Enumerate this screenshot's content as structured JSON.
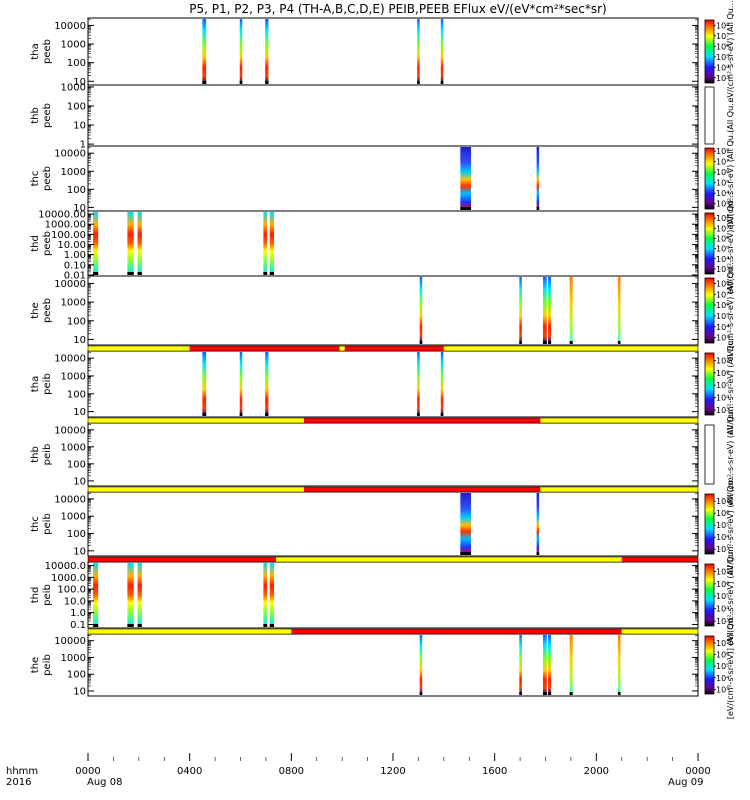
{
  "chart_data": {
    "type": "heatmap",
    "title": "P5, P1, P2, P3, P4 (TH-A,B,C,D,E) PEIB,PEEB EFlux eV/(eV*cm²*sec*sr)",
    "x_axis": {
      "range_hours": [
        0,
        24
      ],
      "tick_values": [
        0,
        4,
        8,
        12,
        16,
        20,
        24
      ],
      "tick_labels": [
        "0000",
        "0400",
        "0800",
        "1200",
        "1600",
        "2000",
        "0000"
      ],
      "date_labels": [
        "Aug 08",
        "Aug 09"
      ],
      "corner_labels": [
        "hhmm",
        "2016"
      ]
    },
    "colormap": "rainbow (black-purple-blue-cyan-green-yellow-red)",
    "panels": [
      {
        "id": "tha-peeb",
        "ylabel": [
          "tha",
          "peeb"
        ],
        "yticks": [
          "10000",
          "1000",
          "100",
          "10"
        ],
        "ylog": [
          0.8,
          4.4
        ],
        "cbar_label": "eV/(cm²-s-sr-eV) (All Qu...",
        "cbar_ticks": [
          "10⁸",
          "10⁷",
          "10⁶",
          "10⁵",
          "10⁴",
          "10³"
        ],
        "cbar_range": [
          2.5,
          8.5
        ],
        "strips": [
          {
            "from": 4.5,
            "to": 4.65,
            "style": "e"
          },
          {
            "from": 5.97,
            "to": 6.07,
            "style": "e"
          },
          {
            "from": 6.97,
            "to": 7.1,
            "style": "e"
          },
          {
            "from": 12.95,
            "to": 13.05,
            "style": "e"
          },
          {
            "from": 13.88,
            "to": 13.98,
            "style": "e"
          }
        ]
      },
      {
        "id": "thb-peeb",
        "ylabel": [
          "thb",
          "peeb"
        ],
        "yticks": [
          "1000",
          "100",
          "10",
          "1"
        ],
        "ylog": [
          -0.1,
          3.1
        ],
        "cbar_label": "(All Qu...",
        "cbar_ticks": [],
        "cbar_range": [
          0,
          1
        ],
        "strips": []
      },
      {
        "id": "thc-peeb",
        "ylabel": [
          "thc",
          "peeb"
        ],
        "yticks": [
          "10000",
          "1000",
          "100",
          "10"
        ],
        "ylog": [
          0.8,
          4.4
        ],
        "cbar_label": "eV/(cm²-s-sr-eV) (All Qu...",
        "cbar_ticks": [
          "10⁸",
          "10⁷",
          "10⁶",
          "10⁵",
          "10⁴",
          "10³"
        ],
        "cbar_range": [
          2.5,
          8.3
        ],
        "strips": [
          {
            "from": 14.65,
            "to": 15.07,
            "style": "c"
          },
          {
            "from": 17.65,
            "to": 17.75,
            "style": "c"
          }
        ]
      },
      {
        "id": "thd-peeb",
        "ylabel": [
          "thd",
          "peeb"
        ],
        "yticks": [
          "10000.00",
          "1000.00",
          "100.00",
          "10.00",
          "1.00",
          "0.10",
          "0.01"
        ],
        "ylog": [
          -2.1,
          4.3
        ],
        "cbar_label": "eV/(cm²-s-sr-eV) (All Qu...",
        "cbar_ticks": [
          "10⁸",
          "10⁷",
          "10⁶",
          "10⁵",
          "10⁴",
          "10³"
        ],
        "cbar_range": [
          2.5,
          8.5
        ],
        "strips": [
          {
            "from": 0.2,
            "to": 0.4,
            "style": "d"
          },
          {
            "from": 1.55,
            "to": 1.8,
            "style": "d"
          },
          {
            "from": 1.95,
            "to": 2.12,
            "style": "d"
          },
          {
            "from": 6.9,
            "to": 7.05,
            "style": "d"
          },
          {
            "from": 7.15,
            "to": 7.32,
            "style": "d"
          }
        ]
      },
      {
        "id": "the-peeb",
        "ylabel": [
          "the",
          "peeb"
        ],
        "yticks": [
          "10000",
          "1000",
          "100",
          "10"
        ],
        "ylog": [
          0.7,
          4.4
        ],
        "cbar_label": "eV/(cm²-s-sr-eV) (All Qu...",
        "cbar_ticks": [
          "10⁸",
          "10⁷",
          "10⁶",
          "10⁵",
          "10⁴",
          "10³"
        ],
        "cbar_range": [
          2.5,
          8.5
        ],
        "strips": [
          {
            "from": 13.05,
            "to": 13.15,
            "style": "e"
          },
          {
            "from": 16.97,
            "to": 17.07,
            "style": "e"
          },
          {
            "from": 17.9,
            "to": 18.05,
            "style": "e"
          },
          {
            "from": 18.1,
            "to": 18.22,
            "style": "e"
          },
          {
            "from": 18.95,
            "to": 19.07,
            "style": "g"
          },
          {
            "from": 20.85,
            "to": 20.95,
            "style": "g"
          }
        ]
      },
      {
        "id": "tha-peib",
        "ylabel": [
          "tha",
          "peib"
        ],
        "yticks": [
          "10000",
          "1000",
          "100",
          "10"
        ],
        "ylog": [
          0.7,
          4.4
        ],
        "cbar_label": "eV/(cm²-s-sr-eV) (All Qu...",
        "cbar_ticks": [
          "10⁷",
          "10⁶",
          "10⁵",
          "10⁴",
          "10³"
        ],
        "cbar_range": [
          2.6,
          7.6
        ],
        "strips": [
          {
            "from": 4.5,
            "to": 4.65,
            "style": "e"
          },
          {
            "from": 5.97,
            "to": 6.07,
            "style": "e"
          },
          {
            "from": 6.97,
            "to": 7.1,
            "style": "e"
          },
          {
            "from": 12.95,
            "to": 13.05,
            "style": "e"
          },
          {
            "from": 13.88,
            "to": 13.98,
            "style": "e"
          }
        ]
      },
      {
        "id": "thb-peib",
        "ylabel": [
          "thb",
          "peib"
        ],
        "yticks": [
          "10000",
          "1000",
          "100",
          "10"
        ],
        "ylog": [
          0.7,
          4.4
        ],
        "cbar_label": "eV/(cm²-s-sr-eV) (All Qu...",
        "cbar_ticks": [],
        "cbar_range": [
          0,
          1
        ],
        "strips": []
      },
      {
        "id": "thc-peib",
        "ylabel": [
          "thc",
          "peib"
        ],
        "yticks": [
          "10000",
          "1000",
          "100",
          "10"
        ],
        "ylog": [
          0.7,
          4.4
        ],
        "cbar_label": "eV/(cm²-s-sr-eV) (All Qu...",
        "cbar_ticks": [
          "10⁷",
          "10⁶",
          "10⁵",
          "10⁴",
          "10³"
        ],
        "cbar_range": [
          2.6,
          7.6
        ],
        "strips": [
          {
            "from": 14.65,
            "to": 15.07,
            "style": "c"
          },
          {
            "from": 17.65,
            "to": 17.75,
            "style": "c"
          }
        ]
      },
      {
        "id": "thd-peib",
        "ylabel": [
          "thd",
          "peib"
        ],
        "yticks": [
          "10000.0",
          "1000.0",
          "100.0",
          "10.0",
          "1.0",
          "0.1"
        ],
        "ylog": [
          -1.3,
          4.3
        ],
        "cbar_label": "eV/(cm²-s-sr-eV) (All Qu...",
        "cbar_ticks": [
          "10⁷",
          "10⁶",
          "10⁵",
          "10⁴",
          "10³"
        ],
        "cbar_range": [
          2.6,
          7.6
        ],
        "strips": [
          {
            "from": 0.2,
            "to": 0.4,
            "style": "d"
          },
          {
            "from": 1.55,
            "to": 1.8,
            "style": "d"
          },
          {
            "from": 1.95,
            "to": 2.12,
            "style": "d"
          },
          {
            "from": 6.9,
            "to": 7.05,
            "style": "d"
          },
          {
            "from": 7.15,
            "to": 7.32,
            "style": "d"
          }
        ]
      },
      {
        "id": "the-peib",
        "ylabel": [
          "the",
          "peib"
        ],
        "yticks": [
          "10000",
          "1000",
          "100",
          "10"
        ],
        "ylog": [
          0.7,
          4.4
        ],
        "cbar_label": "[eV/(cm²-s-sr-eV)] (All Qu...",
        "cbar_ticks": [
          "10⁷",
          "10⁶",
          "10⁵",
          "10⁴",
          "10³"
        ],
        "cbar_range": [
          2.6,
          7.6
        ],
        "strips": [
          {
            "from": 13.05,
            "to": 13.15,
            "style": "e"
          },
          {
            "from": 16.97,
            "to": 17.07,
            "style": "e"
          },
          {
            "from": 17.9,
            "to": 18.05,
            "style": "e"
          },
          {
            "from": 18.1,
            "to": 18.22,
            "style": "e"
          },
          {
            "from": 18.95,
            "to": 19.07,
            "style": "g"
          },
          {
            "from": 20.85,
            "to": 20.95,
            "style": "g"
          }
        ]
      }
    ],
    "mode_bars": [
      {
        "id": "mode-bar-1",
        "after_panel": 4,
        "segments": [
          {
            "from": 0.0,
            "to": 4.0,
            "color": "#ffff00"
          },
          {
            "from": 4.0,
            "to": 9.9,
            "color": "#ff0000"
          },
          {
            "from": 9.9,
            "to": 10.1,
            "color": "#ffff00"
          },
          {
            "from": 10.1,
            "to": 14.0,
            "color": "#ff0000"
          },
          {
            "from": 14.0,
            "to": 24.0,
            "color": "#ffff00"
          }
        ]
      },
      {
        "id": "mode-bar-2",
        "after_panel": 5,
        "segments": [
          {
            "from": 0.0,
            "to": 8.5,
            "color": "#ffff00"
          },
          {
            "from": 8.5,
            "to": 17.8,
            "color": "#ff0000"
          },
          {
            "from": 17.8,
            "to": 24.0,
            "color": "#ffff00"
          }
        ]
      },
      {
        "id": "mode-bar-3",
        "after_panel": 6,
        "segments": [
          {
            "from": 0.0,
            "to": 8.5,
            "color": "#ffff00"
          },
          {
            "from": 8.5,
            "to": 17.8,
            "color": "#ff0000"
          },
          {
            "from": 17.8,
            "to": 24.0,
            "color": "#ffff00"
          }
        ]
      },
      {
        "id": "mode-bar-4",
        "after_panel": 7,
        "segments": [
          {
            "from": 0.0,
            "to": 7.4,
            "color": "#ff0000"
          },
          {
            "from": 7.4,
            "to": 21.0,
            "color": "#ffff00"
          },
          {
            "from": 21.0,
            "to": 24.0,
            "color": "#ff0000"
          }
        ]
      },
      {
        "id": "mode-bar-5",
        "after_panel": 8,
        "segments": [
          {
            "from": 0.0,
            "to": 8.0,
            "color": "#ffff00"
          },
          {
            "from": 8.0,
            "to": 21.0,
            "color": "#ff0000"
          },
          {
            "from": 21.0,
            "to": 24.0,
            "color": "#ffff00"
          }
        ]
      }
    ]
  }
}
